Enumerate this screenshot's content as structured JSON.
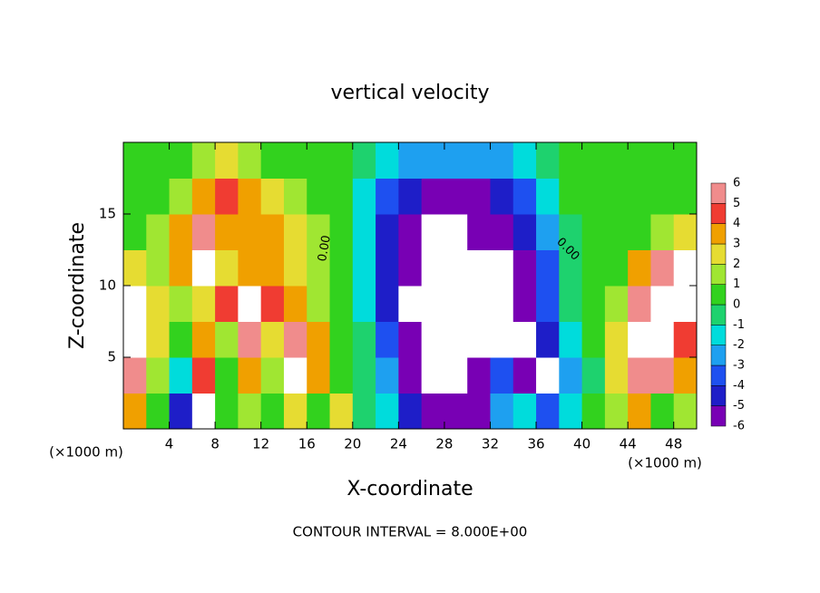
{
  "chart_data": {
    "type": "heatmap",
    "title": "vertical velocity",
    "x_label": "X-coordinate",
    "y_label": "Z-coordinate",
    "x_unit_left": "(×1000 m)",
    "x_unit_right": "(×1000 m)",
    "footnote": "CONTOUR INTERVAL = 8.000E+00",
    "contour_labels": [
      "0.00",
      "0.00"
    ],
    "xlim": [
      0,
      50
    ],
    "ylim": [
      0,
      20
    ],
    "xticks": [
      4,
      8,
      12,
      16,
      20,
      24,
      28,
      32,
      36,
      40,
      44,
      48
    ],
    "yticks": [
      5,
      10,
      15
    ],
    "x": [
      1,
      3,
      5,
      7,
      9,
      11,
      13,
      15,
      17,
      19,
      21,
      23,
      25,
      27,
      29,
      31,
      33,
      35,
      37,
      39,
      41,
      43,
      45,
      47,
      49
    ],
    "y": [
      1.25,
      3.75,
      6.25,
      8.75,
      11.25,
      13.75,
      16.25,
      18.75
    ],
    "z": [
      [
        4,
        1,
        -4,
        7,
        0.5,
        2,
        1,
        3,
        1,
        3,
        -0.5,
        -1,
        -4,
        -6,
        -6,
        -5,
        -2,
        -1,
        -3,
        -1,
        0.5,
        2,
        4,
        1,
        2
      ],
      [
        6,
        2,
        -1,
        5,
        1,
        4,
        2,
        6.5,
        4,
        1,
        -0.5,
        -2,
        -5,
        -7,
        -7,
        -6,
        -3,
        -5,
        -7,
        -2,
        0,
        3,
        6,
        6,
        4
      ],
      [
        7,
        3,
        1,
        4,
        2,
        6,
        3,
        6,
        4,
        0.8,
        -0.5,
        -3,
        -6,
        -7,
        -7,
        -7,
        -7,
        -7,
        -4,
        -1,
        0.3,
        3,
        7,
        7,
        5
      ],
      [
        7,
        3,
        2,
        3,
        5,
        6.5,
        5,
        4,
        2,
        0.5,
        -1,
        -4,
        -7,
        -7,
        -7,
        -6.5,
        -7,
        -6,
        -3,
        -0.5,
        0.3,
        2,
        6,
        7,
        7
      ],
      [
        3,
        2,
        4,
        6.5,
        3,
        3.5,
        4,
        3,
        2,
        0.5,
        -1.5,
        -4,
        -6,
        -7,
        -7,
        -7,
        -6.5,
        -5,
        -3,
        -0.5,
        0.3,
        1,
        4,
        5.5,
        7
      ],
      [
        1,
        2,
        4,
        5.5,
        4,
        4,
        3.5,
        3,
        2,
        0.5,
        -1.5,
        -4,
        -5.5,
        -7,
        -7,
        -6,
        -5.5,
        -4,
        -2,
        0,
        0.5,
        0.5,
        1,
        2,
        3
      ],
      [
        0.5,
        1,
        2,
        3.5,
        4.5,
        4,
        3,
        2,
        1,
        0.3,
        -1,
        -3,
        -4.5,
        -5,
        -5,
        -5,
        -4.5,
        -3,
        -1,
        0.3,
        0.5,
        0.5,
        0.5,
        0.5,
        0.5
      ],
      [
        0.5,
        0.5,
        1,
        2,
        2.5,
        2,
        1,
        0.5,
        0.3,
        0.2,
        0,
        -1,
        -2,
        -2.5,
        -2,
        -2,
        -2,
        -1,
        0,
        0.3,
        0.5,
        0.5,
        0.5,
        0.5,
        0.5
      ]
    ],
    "levels": [
      -6,
      -5,
      -4,
      -3,
      -2,
      -1,
      0,
      1,
      2,
      3,
      4,
      5,
      6
    ],
    "colors": [
      "#7800b4",
      "#1e1ec8",
      "#1e50f0",
      "#1ea0f0",
      "#00dcdc",
      "#1ed26e",
      "#32d21e",
      "#a0e632",
      "#e6dc32",
      "#f0a000",
      "#f03c32",
      "#f08c8c"
    ],
    "out_of_range_color": "#ffffff"
  }
}
